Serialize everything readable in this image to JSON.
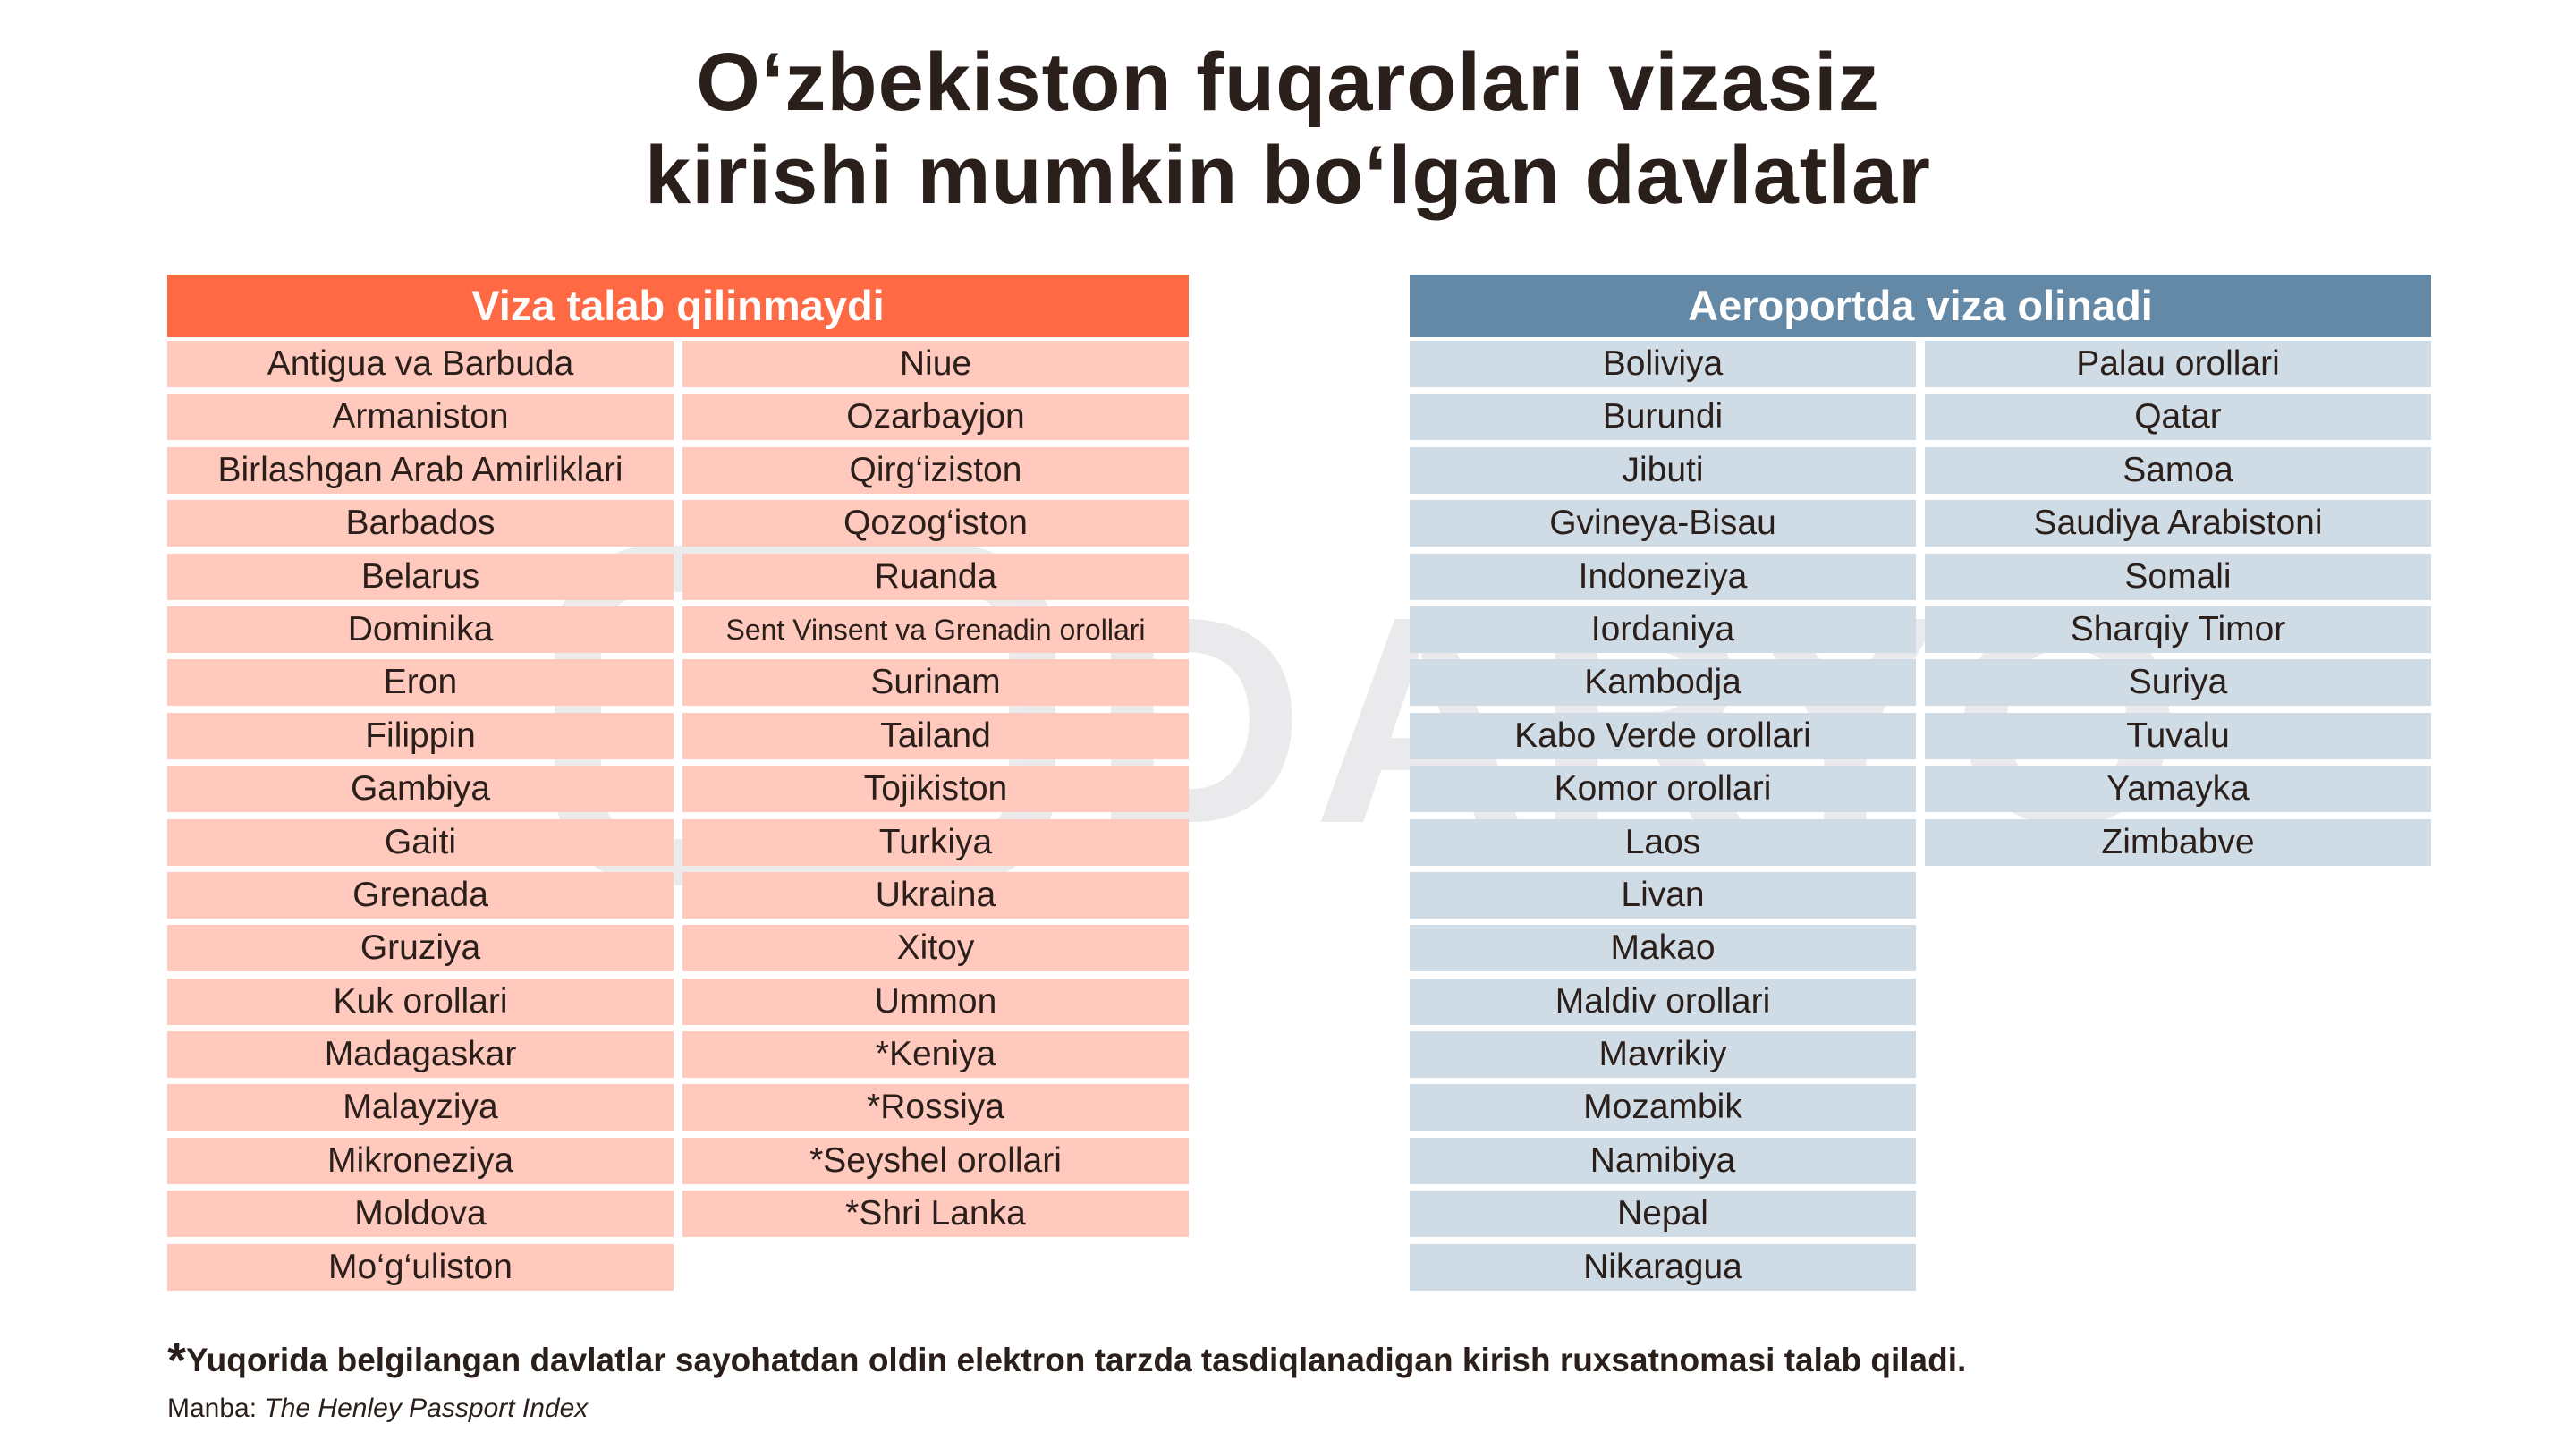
{
  "title": {
    "line1": "O‘zbekiston fuqarolari vizasiz",
    "line2": "kirishi mumkin bo‘lgan davlatlar"
  },
  "watermark": {
    "text": "DARYO"
  },
  "visa_free": {
    "header": "Viza talab qilinmaydi",
    "color": "#ff6a45",
    "column1": [
      "Antigua va Barbuda",
      "Armaniston",
      "Birlashgan Arab Amirliklari",
      "Barbados",
      "Belarus",
      "Dominika",
      "Eron",
      "Filippin",
      "Gambiya",
      "Gaiti",
      "Grenada",
      "Gruziya",
      "Kuk orollari",
      "Madagaskar",
      "Malayziya",
      "Mikroneziya",
      "Moldova",
      "Mo‘g‘uliston"
    ],
    "column2": [
      "Niue",
      "Ozarbayjon",
      "Qirg‘iziston",
      "Qozog‘iston",
      "Ruanda",
      "Sent Vinsent va Grenadin orollari",
      "Surinam",
      "Tailand",
      "Tojikiston",
      "Turkiya",
      "Ukraina",
      "Xitoy",
      "Ummon",
      "*Keniya",
      "*Rossiya",
      "*Seyshel orollari",
      "*Shri Lanka"
    ]
  },
  "visa_on_arrival": {
    "header": "Aeroportda viza olinadi",
    "color": "#6489a6",
    "column1": [
      "Boliviya",
      "Burundi",
      "Jibuti",
      "Gvineya-Bisau",
      "Indoneziya",
      "Iordaniya",
      "Kambodja",
      "Kabo Verde orollari",
      "Komor orollari",
      "Laos",
      "Livan",
      "Makao",
      "Maldiv orollari",
      "Mavrikiy",
      "Mozambik",
      "Namibiya",
      "Nepal",
      "Nikaragua"
    ],
    "column2": [
      "Palau orollari",
      "Qatar",
      "Samoa",
      "Saudiya Arabistoni",
      "Somali",
      "Sharqiy Timor",
      "Suriya",
      "Tuvalu",
      "Yamayka",
      "Zimbabve"
    ]
  },
  "footnote": {
    "star": "*",
    "text": "Yuqorida belgilangan davlatlar sayohatdan oldin elektron tarzda tasdiqlanadigan kirish ruxsatnomasi talab qiladi."
  },
  "source": {
    "label": "Manba: ",
    "name": "The Henley Passport Index"
  }
}
